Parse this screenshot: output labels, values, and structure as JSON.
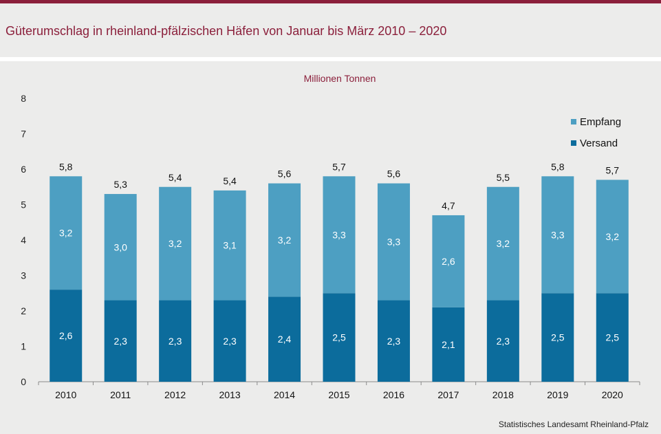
{
  "header": {
    "title": "Güterumschlag in rheinland-pfälzischen Häfen von Januar bis März 2010 – 2020"
  },
  "footer": {
    "source": "Statistisches Landesamt Rheinland-Pfalz"
  },
  "colors": {
    "versand": "#0c6c9c",
    "empfang": "#4d9fc2",
    "accent": "#8b1f3b"
  },
  "chart_data": {
    "type": "bar",
    "stacked": true,
    "unit_label": "Millionen Tonnen",
    "categories": [
      "2010",
      "2011",
      "2012",
      "2013",
      "2014",
      "2015",
      "2016",
      "2017",
      "2018",
      "2019",
      "2020"
    ],
    "series": [
      {
        "name": "Versand",
        "values": [
          2.6,
          2.3,
          2.3,
          2.3,
          2.4,
          2.5,
          2.3,
          2.1,
          2.3,
          2.5,
          2.5
        ],
        "labels": [
          "2,6",
          "2,3",
          "2,3",
          "2,3",
          "2,4",
          "2,5",
          "2,3",
          "2,1",
          "2,3",
          "2,5",
          "2,5"
        ]
      },
      {
        "name": "Empfang",
        "values": [
          3.2,
          3.0,
          3.2,
          3.1,
          3.2,
          3.3,
          3.3,
          2.6,
          3.2,
          3.3,
          3.2
        ],
        "labels": [
          "3,2",
          "3,0",
          "3,2",
          "3,1",
          "3,2",
          "3,3",
          "3,3",
          "2,6",
          "3,2",
          "3,3",
          "3,2"
        ]
      }
    ],
    "totals": [
      5.8,
      5.3,
      5.4,
      5.4,
      5.6,
      5.7,
      5.6,
      4.7,
      5.5,
      5.8,
      5.7
    ],
    "total_labels": [
      "5,8",
      "5,3",
      "5,4",
      "5,4",
      "5,6",
      "5,7",
      "5,6",
      "4,7",
      "5,5",
      "5,8",
      "5,7"
    ],
    "ylim": [
      0,
      8
    ],
    "yticks": [
      "0",
      "1",
      "2",
      "3",
      "4",
      "5",
      "6",
      "7",
      "8"
    ],
    "legend": {
      "position": "top-right",
      "order": [
        "Empfang",
        "Versand"
      ]
    },
    "grid": false
  }
}
